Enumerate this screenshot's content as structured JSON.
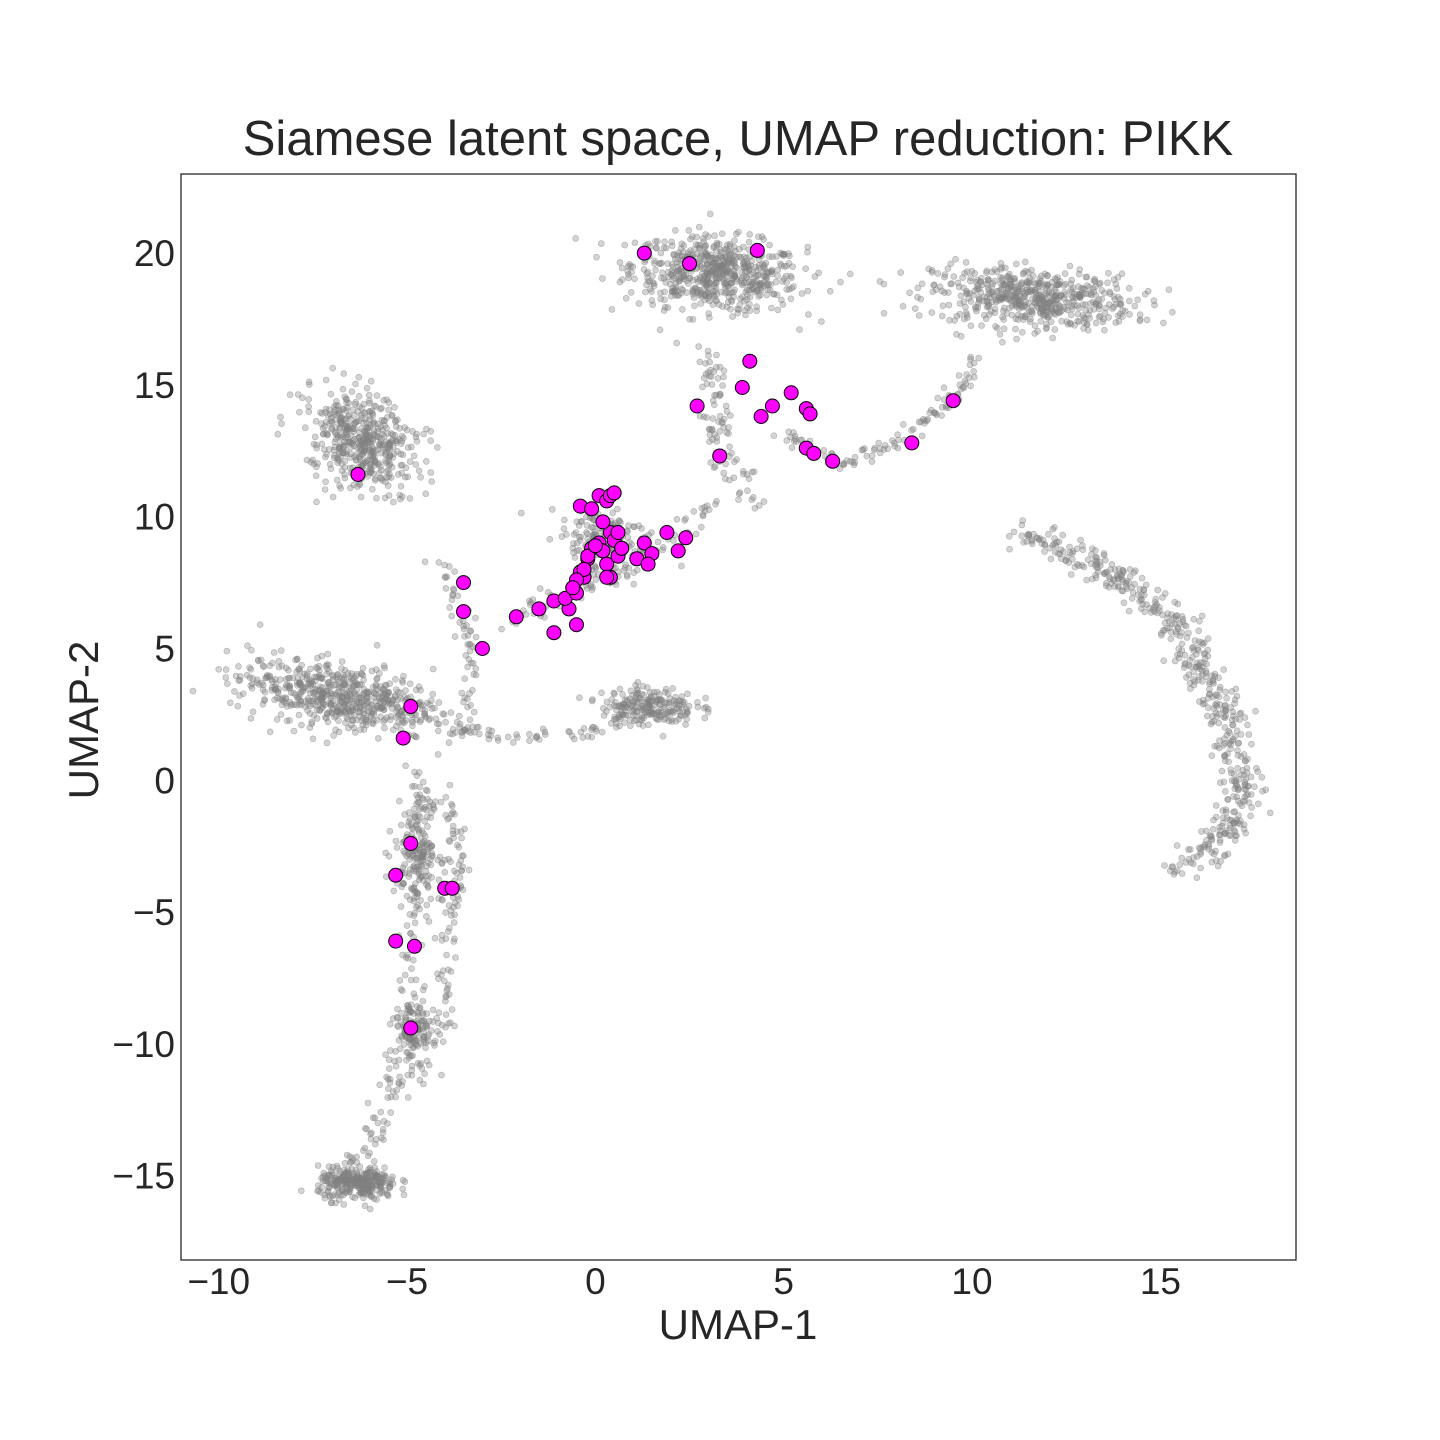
{
  "chart_data": {
    "type": "scatter",
    "title": "Siamese latent space, UMAP reduction: PIKK",
    "xlabel": "UMAP-1",
    "ylabel": "UMAP-2",
    "xlim": [
      -11,
      18.6
    ],
    "ylim": [
      -18.2,
      23
    ],
    "x_ticks": [
      -10,
      -5,
      0,
      5,
      10,
      15
    ],
    "y_ticks": [
      -15,
      -10,
      -5,
      0,
      5,
      10,
      15,
      20
    ],
    "x_tick_labels": [
      "−10",
      "−5",
      "0",
      "5",
      "10",
      "15"
    ],
    "y_tick_labels": [
      "−15",
      "−10",
      "−5",
      "0",
      "5",
      "10",
      "15",
      "20"
    ],
    "grid": false,
    "background_colors": {
      "color": "#808080"
    },
    "highlight_colors": {
      "fill": "#ff00ff",
      "edge": "#000000"
    },
    "background_clusters": [
      {
        "cx": 3.2,
        "cy": 19.2,
        "sx": 1.8,
        "sy": 1.1,
        "n": 620,
        "rot": -0.15
      },
      {
        "cx": 11.6,
        "cy": 18.3,
        "sx": 2.2,
        "sy": 0.9,
        "n": 560,
        "rot": -0.1
      },
      {
        "cx": -6.2,
        "cy": 12.8,
        "sx": 1.0,
        "sy": 1.6,
        "n": 480,
        "rot": 0.45
      },
      {
        "cx": 0.3,
        "cy": 9.2,
        "sx": 0.9,
        "sy": 1.2,
        "n": 170,
        "rot": 0.3
      },
      {
        "cx": -6.8,
        "cy": 3.2,
        "sx": 2.2,
        "sy": 0.95,
        "n": 620,
        "rot": -0.25
      },
      {
        "cx": 1.4,
        "cy": 2.8,
        "sx": 1.0,
        "sy": 0.6,
        "n": 220,
        "rot": 0
      },
      {
        "cx": -6.3,
        "cy": -15.3,
        "sx": 0.85,
        "sy": 0.5,
        "n": 300,
        "rot": 0
      },
      {
        "cx": -4.7,
        "cy": -2.6,
        "sx": 0.5,
        "sy": 1.5,
        "n": 170,
        "rot": 0
      },
      {
        "cx": -4.8,
        "cy": -9.5,
        "sx": 0.45,
        "sy": 0.9,
        "n": 120,
        "rot": 0
      }
    ],
    "background_paths": [
      {
        "points": [
          [
            -4.6,
            0.5
          ],
          [
            -4.7,
            -3.0
          ],
          [
            -4.9,
            -6.0
          ],
          [
            -5.0,
            -9.0
          ],
          [
            -5.5,
            -12.0
          ],
          [
            -6.2,
            -14.5
          ]
        ],
        "n": 150,
        "spread": 0.35
      },
      {
        "points": [
          [
            -4.0,
            0.0
          ],
          [
            -3.6,
            -3.0
          ],
          [
            -4.0,
            -6.0
          ],
          [
            -3.9,
            -9.0
          ],
          [
            -4.8,
            -11.5
          ]
        ],
        "n": 100,
        "spread": 0.3
      },
      {
        "points": [
          [
            3.0,
            16.5
          ],
          [
            3.2,
            14.0
          ],
          [
            3.5,
            12.0
          ],
          [
            4.3,
            10.5
          ]
        ],
        "n": 90,
        "spread": 0.4
      },
      {
        "points": [
          [
            5.0,
            13.0
          ],
          [
            6.5,
            12.0
          ],
          [
            8.0,
            12.8
          ],
          [
            9.5,
            14.5
          ],
          [
            10.3,
            16.5
          ]
        ],
        "n": 110,
        "spread": 0.3
      },
      {
        "points": [
          [
            -2.5,
            6.0
          ],
          [
            -1.2,
            6.8
          ],
          [
            0.5,
            7.8
          ],
          [
            2.0,
            9.0
          ],
          [
            3.2,
            10.6
          ]
        ],
        "n": 80,
        "spread": 0.35
      },
      {
        "points": [
          [
            -4.2,
            8.5
          ],
          [
            -3.5,
            6.0
          ],
          [
            -3.2,
            4.5
          ],
          [
            -3.6,
            2.0
          ]
        ],
        "n": 60,
        "spread": 0.35
      },
      {
        "points": [
          [
            -4.0,
            2.0
          ],
          [
            -2.0,
            1.6
          ],
          [
            0.0,
            1.9
          ],
          [
            1.0,
            2.3
          ]
        ],
        "n": 50,
        "spread": 0.25
      },
      {
        "points": [
          [
            11.3,
            9.4
          ],
          [
            13.0,
            8.4
          ],
          [
            14.6,
            7.0
          ],
          [
            15.8,
            5.2
          ],
          [
            16.7,
            2.5
          ],
          [
            17.2,
            -0.5
          ],
          [
            16.5,
            -2.5
          ],
          [
            15.4,
            -3.4
          ]
        ],
        "n": 520,
        "spread": 0.55
      }
    ],
    "highlighted_points": {
      "x": [
        1.3,
        2.5,
        4.3,
        4.1,
        3.9,
        5.2,
        5.6,
        5.7,
        2.7,
        4.7,
        4.4,
        5.6,
        5.8,
        6.3,
        3.3,
        8.4,
        9.5,
        -6.3,
        -3.5,
        -3.5,
        -3.0,
        -2.1,
        -1.5,
        -1.1,
        -0.7,
        -0.5,
        -1.1,
        -0.8,
        -0.6,
        -0.5,
        -0.4,
        -0.3,
        -0.2,
        -0.1,
        0.0,
        0.1,
        0.2,
        0.3,
        0.4,
        0.5,
        0.6,
        0.7,
        -0.4,
        -0.1,
        0.1,
        0.3,
        0.4,
        0.5,
        0.2,
        0.6,
        1.1,
        1.3,
        1.5,
        1.9,
        2.2,
        2.4,
        1.4,
        -0.2,
        -0.3,
        -0.5,
        0.4,
        0.3,
        0.7,
        -0.6,
        0.0,
        -4.9,
        -5.1,
        -4.9,
        -5.3,
        -4.0,
        -3.8,
        -5.3,
        -4.8,
        -4.9
      ],
      "y": [
        20.0,
        19.6,
        20.1,
        15.9,
        14.9,
        14.7,
        14.1,
        13.9,
        14.2,
        14.2,
        13.8,
        12.6,
        12.4,
        12.1,
        12.3,
        12.8,
        14.4,
        11.6,
        7.5,
        6.4,
        5.0,
        6.2,
        6.5,
        5.6,
        6.5,
        5.9,
        6.8,
        6.9,
        7.3,
        7.1,
        7.9,
        7.7,
        8.4,
        8.8,
        8.9,
        9.0,
        8.7,
        8.2,
        9.4,
        9.1,
        8.5,
        8.8,
        10.4,
        10.3,
        10.8,
        10.6,
        10.8,
        10.9,
        9.8,
        9.4,
        8.4,
        9.0,
        8.6,
        9.4,
        8.7,
        9.2,
        8.2,
        8.5,
        8.0,
        7.6,
        7.7,
        7.7,
        8.8,
        7.3,
        8.9,
        2.8,
        1.6,
        -2.4,
        -3.6,
        -4.1,
        -4.1,
        -6.1,
        -6.3,
        -9.4
      ]
    }
  }
}
